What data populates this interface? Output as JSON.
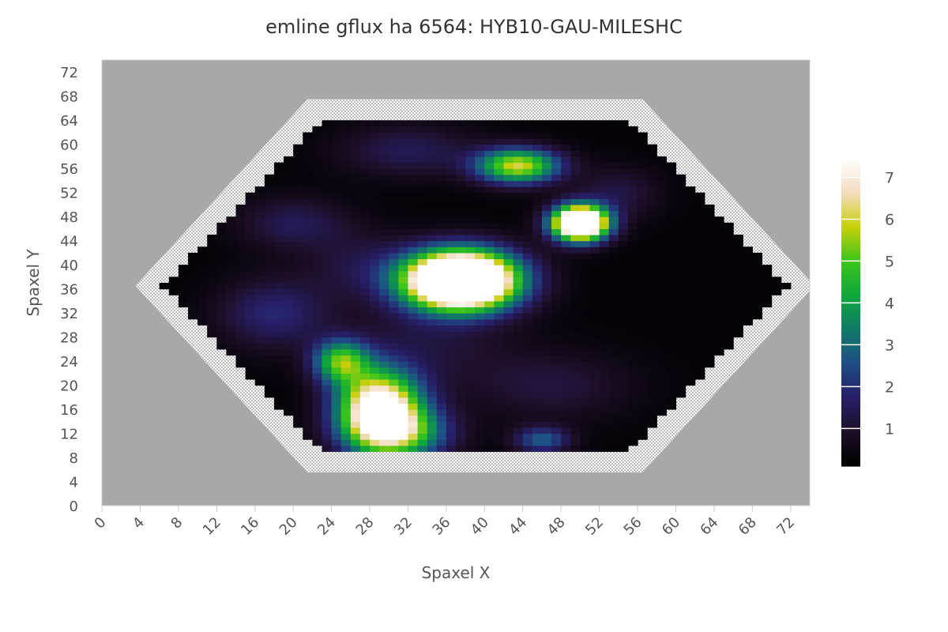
{
  "chart_data": {
    "type": "heatmap",
    "title": "emline gflux ha 6564: HYB10-GAU-MILESHC",
    "xlabel": "Spaxel X",
    "ylabel": "Spaxel Y",
    "xlim": [
      0,
      74
    ],
    "ylim": [
      0,
      74
    ],
    "x_ticks": [
      "0",
      "4",
      "8",
      "12",
      "16",
      "20",
      "24",
      "28",
      "32",
      "36",
      "40",
      "44",
      "48",
      "52",
      "56",
      "60",
      "64",
      "68",
      "72"
    ],
    "y_ticks": [
      "0",
      "4",
      "8",
      "12",
      "16",
      "20",
      "24",
      "28",
      "32",
      "36",
      "40",
      "44",
      "48",
      "52",
      "56",
      "60",
      "64",
      "68",
      "72"
    ],
    "colorbar": {
      "min": 0.1,
      "max": 7.5,
      "ticks": [
        "1",
        "2",
        "3",
        "4",
        "5",
        "6",
        "7"
      ],
      "colors": [
        "#000000",
        "#1e0f2a",
        "#27206a",
        "#1e4f86",
        "#107a66",
        "#0fa83a",
        "#3dc51a",
        "#c9cf0a",
        "#f3dcc0",
        "#ffffff"
      ]
    },
    "background_color": "#a8a8a8",
    "hexagon_vertices": [
      [
        3.5,
        36.5
      ],
      [
        21.5,
        67.5
      ],
      [
        56.5,
        67.5
      ],
      [
        74.5,
        36.5
      ],
      [
        56.5,
        5.5
      ],
      [
        21.5,
        5.5
      ]
    ],
    "flux_blobs": [
      {
        "x": 37.5,
        "y": 37.5,
        "sx": 4.0,
        "sy": 3.3,
        "amp": 14.0
      },
      {
        "x": 50.0,
        "y": 47.0,
        "sx": 2.0,
        "sy": 2.0,
        "amp": 12.0
      },
      {
        "x": 43.5,
        "y": 56.5,
        "sx": 3.0,
        "sy": 2.0,
        "amp": 5.8
      },
      {
        "x": 29.0,
        "y": 16.0,
        "sx": 3.0,
        "sy": 4.5,
        "amp": 8.5
      },
      {
        "x": 25.0,
        "y": 24.0,
        "sx": 2.0,
        "sy": 2.5,
        "amp": 4.5
      },
      {
        "x": 31.5,
        "y": 12.0,
        "sx": 3.5,
        "sy": 3.0,
        "amp": 3.5
      },
      {
        "x": 46.0,
        "y": 11.0,
        "sx": 2.0,
        "sy": 1.5,
        "amp": 2.5
      },
      {
        "x": 18.0,
        "y": 32.0,
        "sx": 4.0,
        "sy": 4.0,
        "amp": 1.6
      },
      {
        "x": 20.0,
        "y": 47.0,
        "sx": 4.0,
        "sy": 3.0,
        "amp": 1.2
      },
      {
        "x": 32.0,
        "y": 59.0,
        "sx": 5.0,
        "sy": 3.0,
        "amp": 1.2
      },
      {
        "x": 47.0,
        "y": 20.0,
        "sx": 6.0,
        "sy": 4.0,
        "amp": 0.9
      },
      {
        "x": 34.0,
        "y": 27.0,
        "sx": 6.0,
        "sy": 5.0,
        "amp": 0.8
      },
      {
        "x": 27.0,
        "y": 40.0,
        "sx": 4.0,
        "sy": 4.0,
        "amp": 0.9
      },
      {
        "x": 54.0,
        "y": 52.0,
        "sx": 3.0,
        "sy": 3.0,
        "amp": 1.0
      }
    ],
    "base_flux": 0.25,
    "grid": false
  }
}
